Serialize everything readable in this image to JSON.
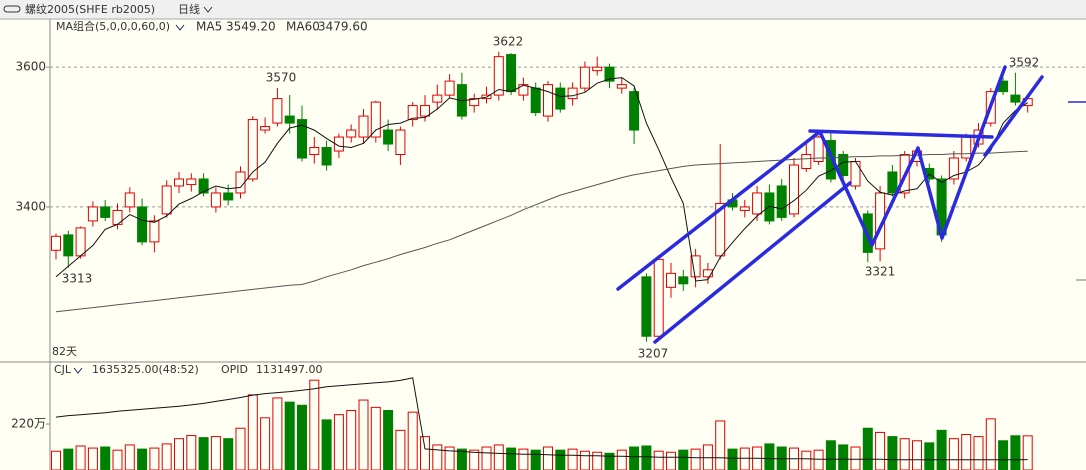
{
  "chart_data": [
    {
      "type": "candlestick",
      "title": "螺纹2005(SHFE rb2005)",
      "period": "日线",
      "indicator": "MA组合(5,0,0,0,60,0)",
      "range_label": "82天",
      "ylim": [
        3181,
        3646
      ],
      "yticks": [
        3400,
        3600
      ],
      "grid": true,
      "up_color": "#e00000",
      "down_color": "#008000",
      "annotations": [
        "3622",
        "3570",
        "3313",
        "3207",
        "3321",
        "3592"
      ],
      "ohlc": [
        [
          3338,
          3362,
          3325,
          3358
        ],
        [
          3360,
          3366,
          3313,
          3330
        ],
        [
          3330,
          3372,
          3326,
          3370
        ],
        [
          3380,
          3408,
          3372,
          3400
        ],
        [
          3400,
          3410,
          3380,
          3385
        ],
        [
          3375,
          3405,
          3368,
          3395
        ],
        [
          3400,
          3428,
          3392,
          3420
        ],
        [
          3400,
          3412,
          3345,
          3350
        ],
        [
          3350,
          3388,
          3335,
          3380
        ],
        [
          3390,
          3438,
          3385,
          3430
        ],
        [
          3430,
          3450,
          3420,
          3440
        ],
        [
          3432,
          3448,
          3422,
          3440
        ],
        [
          3440,
          3448,
          3415,
          3420
        ],
        [
          3400,
          3428,
          3392,
          3420
        ],
        [
          3420,
          3432,
          3402,
          3410
        ],
        [
          3420,
          3458,
          3412,
          3450
        ],
        [
          3440,
          3530,
          3436,
          3525
        ],
        [
          3510,
          3528,
          3505,
          3515
        ],
        [
          3520,
          3570,
          3515,
          3555
        ],
        [
          3530,
          3560,
          3505,
          3520
        ],
        [
          3525,
          3545,
          3465,
          3470
        ],
        [
          3475,
          3500,
          3462,
          3485
        ],
        [
          3485,
          3495,
          3452,
          3460
        ],
        [
          3480,
          3505,
          3470,
          3500
        ],
        [
          3500,
          3518,
          3492,
          3510
        ],
        [
          3500,
          3540,
          3490,
          3530
        ],
        [
          3500,
          3552,
          3492,
          3550
        ],
        [
          3510,
          3525,
          3480,
          3490
        ],
        [
          3475,
          3515,
          3460,
          3510
        ],
        [
          3525,
          3550,
          3515,
          3545
        ],
        [
          3530,
          3560,
          3522,
          3545
        ],
        [
          3550,
          3575,
          3540,
          3560
        ],
        [
          3560,
          3590,
          3555,
          3580
        ],
        [
          3575,
          3592,
          3525,
          3530
        ],
        [
          3545,
          3562,
          3535,
          3555
        ],
        [
          3555,
          3572,
          3548,
          3560
        ],
        [
          3560,
          3622,
          3552,
          3615
        ],
        [
          3618,
          3620,
          3560,
          3565
        ],
        [
          3560,
          3585,
          3552,
          3575
        ],
        [
          3570,
          3578,
          3530,
          3535
        ],
        [
          3530,
          3580,
          3522,
          3575
        ],
        [
          3570,
          3578,
          3535,
          3540
        ],
        [
          3555,
          3578,
          3545,
          3570
        ],
        [
          3570,
          3608,
          3565,
          3600
        ],
        [
          3595,
          3615,
          3588,
          3600
        ],
        [
          3600,
          3605,
          3570,
          3580
        ],
        [
          3570,
          3585,
          3562,
          3575
        ],
        [
          3565,
          3570,
          3490,
          3510
        ],
        [
          3300,
          3305,
          3207,
          3215
        ],
        [
          3215,
          3330,
          3210,
          3325
        ],
        [
          3285,
          3320,
          3270,
          3305
        ],
        [
          3300,
          3310,
          3280,
          3290
        ],
        [
          3300,
          3340,
          3285,
          3330
        ],
        [
          3300,
          3320,
          3290,
          3310
        ],
        [
          3330,
          3490,
          3325,
          3405
        ],
        [
          3410,
          3420,
          3395,
          3400
        ],
        [
          3395,
          3410,
          3385,
          3400
        ],
        [
          3390,
          3430,
          3380,
          3420
        ],
        [
          3420,
          3432,
          3375,
          3380
        ],
        [
          3430,
          3440,
          3380,
          3385
        ],
        [
          3390,
          3470,
          3385,
          3460
        ],
        [
          3455,
          3490,
          3450,
          3475
        ],
        [
          3465,
          3502,
          3460,
          3500
        ],
        [
          3495,
          3505,
          3435,
          3440
        ],
        [
          3475,
          3480,
          3440,
          3445
        ],
        [
          3430,
          3470,
          3425,
          3465
        ],
        [
          3390,
          3395,
          3321,
          3335
        ],
        [
          3340,
          3430,
          3322,
          3420
        ],
        [
          3450,
          3460,
          3415,
          3420
        ],
        [
          3420,
          3480,
          3412,
          3475
        ],
        [
          3465,
          3485,
          3458,
          3480
        ],
        [
          3455,
          3462,
          3435,
          3440
        ],
        [
          3440,
          3445,
          3350,
          3360
        ],
        [
          3440,
          3480,
          3432,
          3470
        ],
        [
          3470,
          3505,
          3465,
          3500
        ],
        [
          3490,
          3520,
          3485,
          3510
        ],
        [
          3520,
          3570,
          3515,
          3565
        ],
        [
          3580,
          3585,
          3560,
          3565
        ],
        [
          3560,
          3592,
          3545,
          3550
        ],
        [
          3545,
          3560,
          3535,
          3555
        ]
      ],
      "series": [
        {
          "name": "MA5",
          "last_label": "3549.20",
          "color": "#111111",
          "label_color": "#1a1a60",
          "values": [
            3300,
            3315,
            3330,
            3345,
            3368,
            3375,
            3389,
            3381,
            3378,
            3387,
            3404,
            3412,
            3422,
            3430,
            3426,
            3428,
            3450,
            3464,
            3491,
            3513,
            3517,
            3510,
            3498,
            3487,
            3485,
            3491,
            3510,
            3518,
            3520,
            3527,
            3528,
            3540,
            3556,
            3552,
            3554,
            3557,
            3568,
            3565,
            3574,
            3570,
            3565,
            3558,
            3559,
            3564,
            3577,
            3583,
            3585,
            3573,
            3520,
            3482,
            3442,
            3405,
            3294,
            3296,
            3328,
            3349,
            3369,
            3387,
            3401,
            3397,
            3409,
            3424,
            3444,
            3452,
            3464,
            3465,
            3437,
            3421,
            3417,
            3423,
            3426,
            3447,
            3435,
            3445,
            3450,
            3460,
            3481,
            3520,
            3538,
            3549.2
          ]
        },
        {
          "name": "MA60",
          "last_label": "3479.60",
          "color": "#555555",
          "label_color": "#888888",
          "values": [
            3250,
            3252,
            3254,
            3256,
            3258,
            3260,
            3262,
            3264,
            3266,
            3268,
            3270,
            3272,
            3274,
            3276,
            3278,
            3280,
            3282,
            3284,
            3286,
            3288,
            3289,
            3294,
            3300,
            3305,
            3310,
            3316,
            3321,
            3326,
            3332,
            3337,
            3342,
            3348,
            3353,
            3360,
            3367,
            3374,
            3381,
            3388,
            3396,
            3403,
            3410,
            3417,
            3422,
            3427,
            3432,
            3437,
            3442,
            3446,
            3449,
            3452,
            3455,
            3458,
            3460,
            3461,
            3462,
            3463,
            3464,
            3465,
            3466,
            3467,
            3468,
            3469,
            3470,
            3470,
            3471,
            3472,
            3472,
            3473,
            3473,
            3474,
            3474,
            3475,
            3475,
            3476,
            3476,
            3477,
            3477,
            3478,
            3479,
            3479.6
          ]
        }
      ]
    },
    {
      "type": "bar",
      "ylim": [
        0,
        455
      ],
      "yticks": [
        {
          "value": 220,
          "label": "220万"
        }
      ],
      "y2lim": [
        92,
        286
      ],
      "grid": false,
      "series": [
        {
          "name": "CJL",
          "last_label": "1635325.00(48:52)",
          "values": [
            90,
            100,
            115,
            105,
            110,
            95,
            120,
            100,
            105,
            125,
            150,
            165,
            155,
            160,
            150,
            200,
            360,
            250,
            345,
            325,
            310,
            430,
            240,
            265,
            285,
            335,
            300,
            285,
            190,
            277,
            160,
            120,
            110,
            100,
            95,
            110,
            120,
            105,
            100,
            95,
            110,
            95,
            100,
            90,
            85,
            80,
            95,
            110,
            115,
            90,
            85,
            95,
            100,
            120,
            235,
            100,
            105,
            110,
            125,
            110,
            105,
            90,
            95,
            140,
            120,
            110,
            200,
            180,
            160,
            150,
            140,
            130,
            190,
            150,
            170,
            160,
            245,
            140,
            164,
            163.5325
          ]
        },
        {
          "name": "OPID",
          "last_label": "1131497.00",
          "axis": "y2",
          "color": "#111111",
          "values": [
            200,
            203,
            205,
            207,
            209,
            212,
            214,
            216,
            218,
            220,
            222,
            225,
            228,
            232,
            236,
            240,
            245,
            248,
            250,
            252,
            255,
            258,
            262,
            264,
            266,
            268,
            270,
            272,
            275,
            280,
            135,
            133,
            131,
            130,
            128,
            127,
            126,
            125,
            124,
            124,
            123,
            122,
            122,
            121,
            121,
            120,
            120,
            119,
            119,
            118,
            118,
            118,
            117,
            117,
            117,
            116,
            116,
            116,
            115,
            115,
            115,
            115,
            114,
            114,
            114,
            114,
            114,
            114,
            113,
            113,
            113,
            113,
            113,
            113,
            113,
            113,
            113,
            113,
            113,
            113.1497
          ]
        }
      ]
    }
  ]
}
